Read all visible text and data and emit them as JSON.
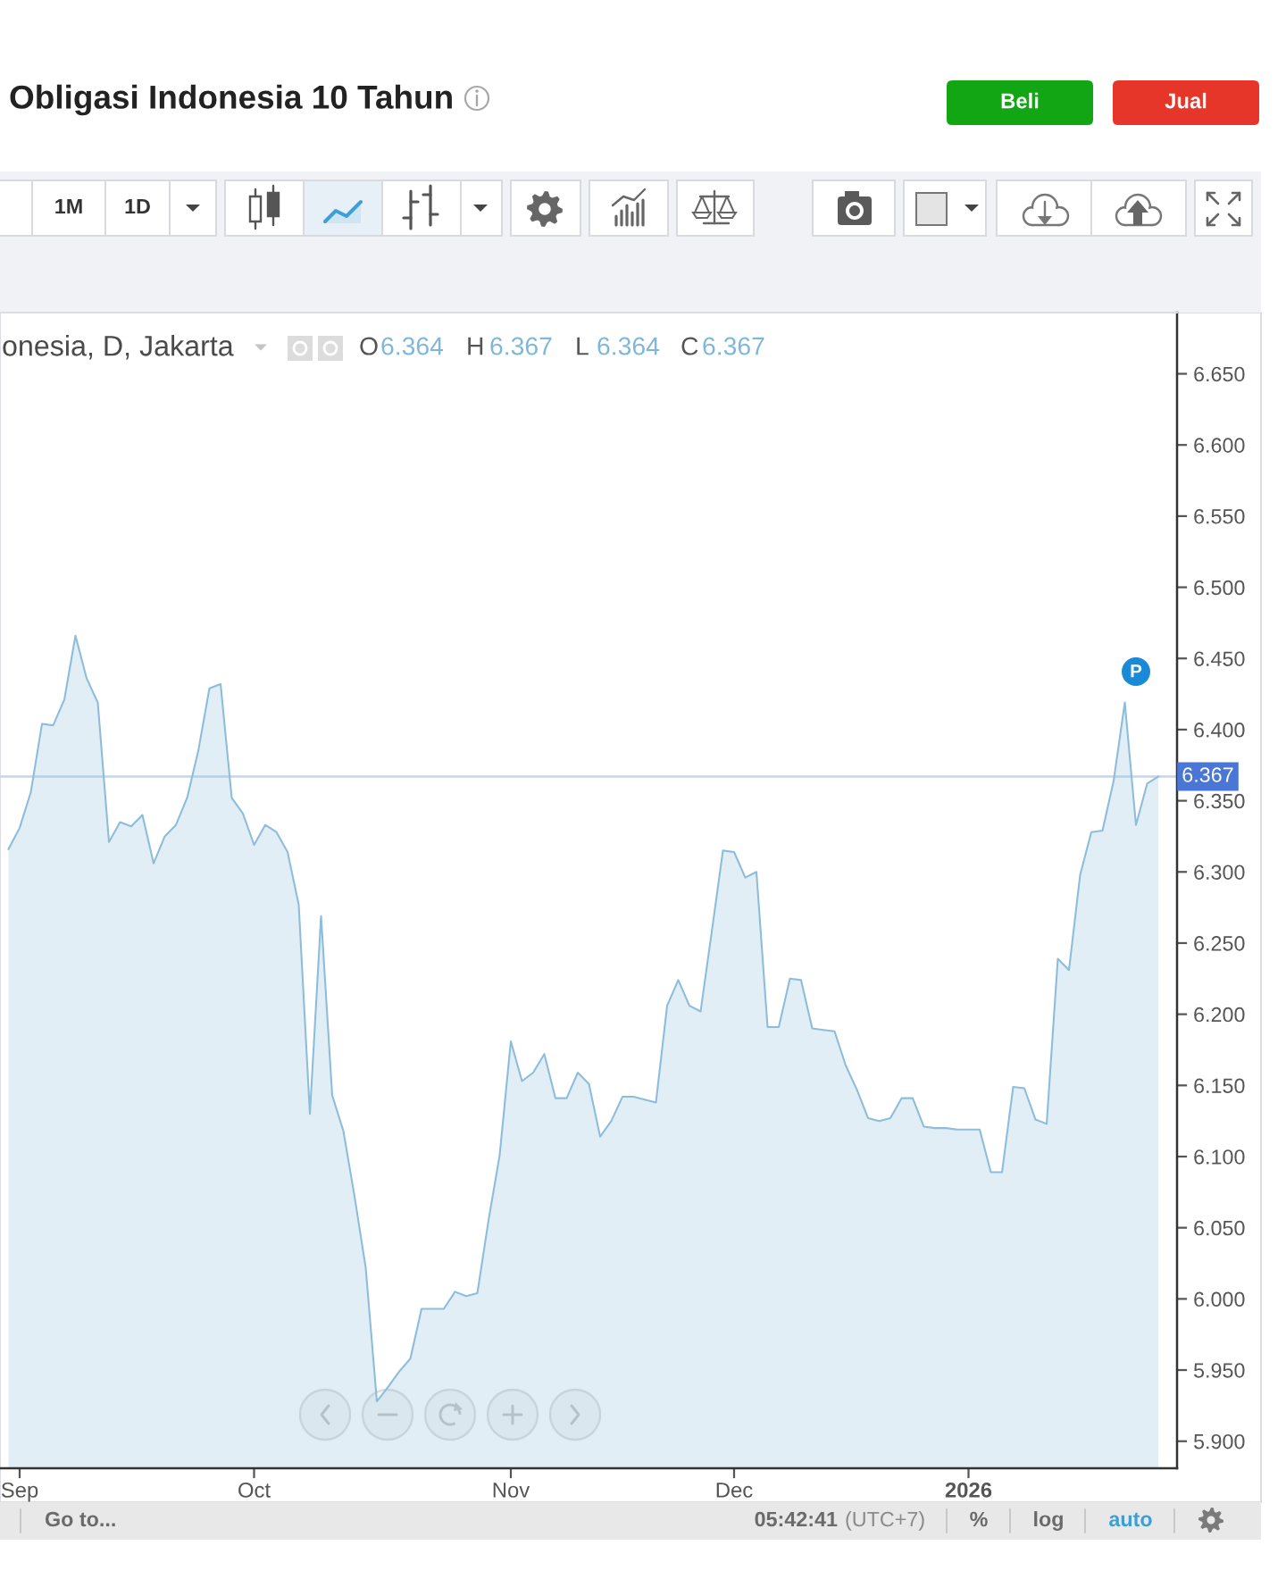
{
  "chart_data": {
    "type": "area",
    "title": "Obligasi Indonesia 10 Tahun",
    "subtitle": "onesia, D, Jakarta",
    "categories": [
      null,
      "Sep",
      null,
      null,
      null,
      null,
      null,
      null,
      null,
      null,
      null,
      null,
      null,
      null,
      null,
      null,
      null,
      null,
      null,
      null,
      null,
      null,
      "Oct",
      null,
      null,
      null,
      null,
      null,
      null,
      null,
      null,
      null,
      null,
      null,
      null,
      null,
      null,
      null,
      null,
      null,
      null,
      null,
      null,
      null,
      null,
      "Nov",
      null,
      null,
      null,
      null,
      null,
      null,
      null,
      null,
      null,
      null,
      null,
      null,
      null,
      null,
      null,
      null,
      null,
      null,
      null,
      "Dec",
      null,
      null,
      null,
      null,
      null,
      null,
      null,
      null,
      null,
      null,
      null,
      null,
      null,
      null,
      null,
      null,
      null,
      null,
      null,
      null,
      "2026",
      null,
      null,
      null,
      null,
      null,
      null,
      null,
      null,
      null,
      null,
      null,
      null,
      null,
      null,
      null,
      null,
      null
    ],
    "values": [
      6.316,
      6.331,
      6.356,
      6.404,
      6.403,
      6.421,
      6.466,
      6.436,
      6.419,
      6.321,
      6.335,
      6.332,
      6.34,
      6.306,
      6.325,
      6.333,
      6.352,
      6.385,
      6.429,
      6.432,
      6.352,
      6.341,
      6.319,
      6.333,
      6.328,
      6.314,
      6.277,
      6.13,
      6.269,
      6.143,
      6.118,
      6.072,
      6.022,
      5.928,
      5.938,
      5.949,
      5.958,
      5.993,
      5.993,
      5.993,
      6.005,
      6.002,
      6.004,
      6.055,
      6.101,
      6.181,
      6.153,
      6.159,
      6.172,
      6.141,
      6.141,
      6.159,
      6.151,
      6.114,
      6.125,
      6.142,
      6.142,
      6.14,
      6.138,
      6.206,
      6.224,
      6.206,
      6.202,
      6.258,
      6.315,
      6.314,
      6.296,
      6.3,
      6.191,
      6.191,
      6.225,
      6.224,
      6.19,
      6.189,
      6.188,
      6.164,
      6.147,
      6.127,
      6.125,
      6.127,
      6.141,
      6.141,
      6.121,
      6.12,
      6.12,
      6.119,
      6.119,
      6.119,
      6.089,
      6.089,
      6.149,
      6.148,
      6.126,
      6.123,
      6.239,
      6.231,
      6.298,
      6.328,
      6.329,
      6.364,
      6.419,
      6.333,
      6.362,
      6.367
    ],
    "color": "#8dbddb",
    "ylim": [
      5.881,
      6.693
    ],
    "yticks": [
      {
        "value": 5.9,
        "label": "5.900"
      },
      {
        "value": 5.95,
        "label": "5.950"
      },
      {
        "value": 6.0,
        "label": "6.000"
      },
      {
        "value": 6.05,
        "label": "6.050"
      },
      {
        "value": 6.1,
        "label": "6.100"
      },
      {
        "value": 6.15,
        "label": "6.150"
      },
      {
        "value": 6.2,
        "label": "6.200"
      },
      {
        "value": 6.25,
        "label": "6.250"
      },
      {
        "value": 6.3,
        "label": "6.300"
      },
      {
        "value": 6.35,
        "label": "6.350"
      },
      {
        "value": 6.4,
        "label": "6.400"
      },
      {
        "value": 6.45,
        "label": "6.450"
      },
      {
        "value": 6.5,
        "label": "6.500"
      },
      {
        "value": 6.55,
        "label": "6.550"
      },
      {
        "value": 6.6,
        "label": "6.600"
      },
      {
        "value": 6.65,
        "label": "6.650"
      }
    ],
    "ref_lines": [
      {
        "axis": "y",
        "value": 6.367,
        "label": "6.367",
        "color": "#c8d5e2"
      }
    ],
    "annotations": [
      "Beli",
      "Jual",
      "1M",
      "1D",
      "O",
      "6.364",
      "H",
      "6.367",
      "L",
      "6.364",
      "C",
      "6.367",
      "P",
      "Go to...",
      "05:42:41",
      "(UTC+7)",
      "%",
      "log",
      "auto"
    ]
  }
}
